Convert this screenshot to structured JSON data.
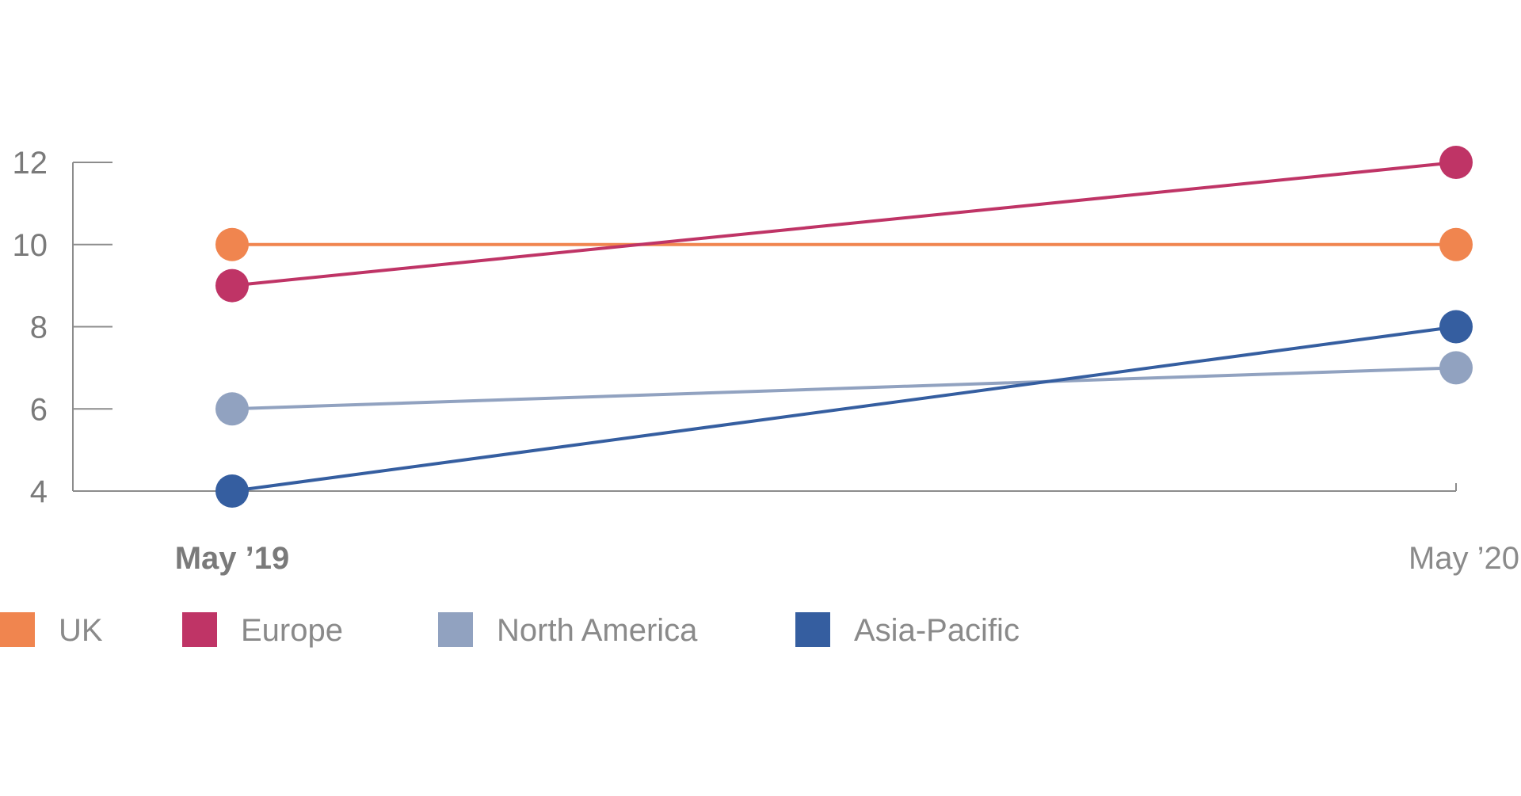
{
  "chart_data": {
    "type": "line",
    "title": "",
    "xlabel": "",
    "ylabel": "",
    "categories": [
      "May ’19",
      "May ’20"
    ],
    "emphasized_category": "May ’19",
    "ylim": [
      4,
      12
    ],
    "yticks": [
      4,
      6,
      8,
      10,
      12
    ],
    "grid": false,
    "legend_position": "bottom-left",
    "series": [
      {
        "name": "UK",
        "color": "#f0854f",
        "values": [
          10,
          10
        ]
      },
      {
        "name": "Europe",
        "color": "#bf3466",
        "values": [
          9,
          12
        ]
      },
      {
        "name": "North America",
        "color": "#91a2c0",
        "values": [
          6,
          7
        ]
      },
      {
        "name": "Asia-Pacific",
        "color": "#355ea0",
        "values": [
          4,
          8
        ]
      }
    ]
  }
}
